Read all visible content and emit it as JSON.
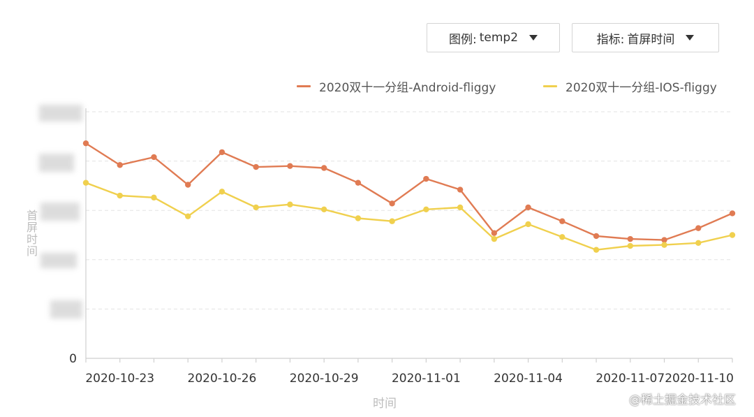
{
  "controls": {
    "legend_select": {
      "label": "图例:",
      "value": "temp2"
    },
    "metric_select": {
      "label": "指标:",
      "value": "首屏时间"
    }
  },
  "watermark": "@稀土掘金技术社区",
  "chart_data": {
    "type": "line",
    "title": "",
    "xlabel": "时间",
    "ylabel": "首屏时间",
    "ylim": [
      0,
      2500
    ],
    "y_ticks_visible": [
      "0"
    ],
    "grid": "horizontal-dashed",
    "legend_position": "top-right",
    "x": [
      "2020-10-22",
      "2020-10-23",
      "2020-10-24",
      "2020-10-25",
      "2020-10-26",
      "2020-10-27",
      "2020-10-28",
      "2020-10-29",
      "2020-10-30",
      "2020-10-31",
      "2020-11-01",
      "2020-11-02",
      "2020-11-03",
      "2020-11-04",
      "2020-11-05",
      "2020-11-06",
      "2020-11-07",
      "2020-11-08",
      "2020-11-09",
      "2020-11-10"
    ],
    "x_tick_labels": [
      "2020-10-23",
      "2020-10-26",
      "2020-10-29",
      "2020-11-01",
      "2020-11-04",
      "2020-11-07",
      "2020-11-10"
    ],
    "series": [
      {
        "name": "2020双十一分组-Android-fliggy",
        "color": "#e07b53",
        "values": [
          2180,
          1960,
          2040,
          1760,
          2090,
          1940,
          1950,
          1930,
          1780,
          1570,
          1820,
          1710,
          1270,
          1530,
          1390,
          1240,
          1210,
          1200,
          1320,
          1470
        ]
      },
      {
        "name": "2020双十一分组-IOS-fliggy",
        "color": "#f0d04e",
        "values": [
          1780,
          1650,
          1630,
          1440,
          1690,
          1530,
          1560,
          1510,
          1420,
          1390,
          1510,
          1530,
          1210,
          1360,
          1230,
          1100,
          1140,
          1150,
          1170,
          1250
        ]
      }
    ]
  }
}
